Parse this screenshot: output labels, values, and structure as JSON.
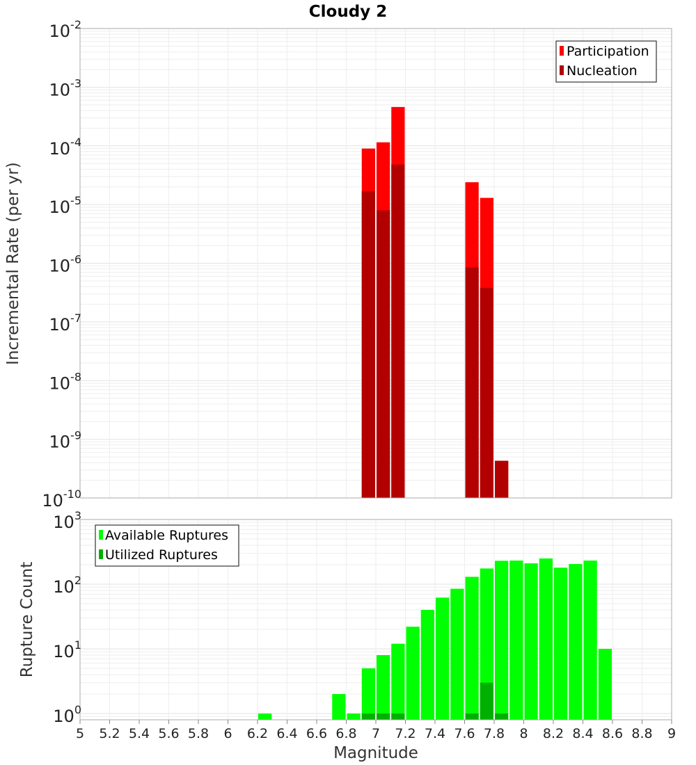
{
  "title": "Cloudy 2",
  "colors": {
    "participation": "#ff0000",
    "nucleation": "#b20000",
    "available": "#00ff00",
    "utilized": "#00b000"
  },
  "chart_data": [
    {
      "type": "bar",
      "title": "Cloudy 2",
      "xlabel": "",
      "ylabel": "Incremental Rate (per yr)",
      "yscale": "log",
      "ylim": [
        1e-10,
        0.01
      ],
      "xlim": [
        5,
        9
      ],
      "ytick_base": "10",
      "ytick_exponents": [
        "-10",
        "-9",
        "-8",
        "-7",
        "-6",
        "-5",
        "-4",
        "-3",
        "-2"
      ],
      "legend": {
        "position": "top-right",
        "entries": [
          "Participation",
          "Nucleation"
        ]
      },
      "grid": true,
      "series": [
        {
          "name": "Participation",
          "points": [
            {
              "x": 6.95,
              "y": 9e-05
            },
            {
              "x": 7.05,
              "y": 0.000115
            },
            {
              "x": 7.15,
              "y": 0.00046
            },
            {
              "x": 7.65,
              "y": 2.4e-05
            },
            {
              "x": 7.75,
              "y": 1.3e-05
            },
            {
              "x": 7.85,
              "y": 4.3e-10
            }
          ]
        },
        {
          "name": "Nucleation",
          "points": [
            {
              "x": 6.95,
              "y": 1.7e-05
            },
            {
              "x": 7.05,
              "y": 8e-06
            },
            {
              "x": 7.15,
              "y": 4.8e-05
            },
            {
              "x": 7.65,
              "y": 8.5e-07
            },
            {
              "x": 7.75,
              "y": 3.8e-07
            },
            {
              "x": 7.85,
              "y": 4.3e-10
            }
          ]
        }
      ]
    },
    {
      "type": "bar",
      "title": "",
      "xlabel": "Magnitude",
      "ylabel": "Rupture Count",
      "yscale": "log",
      "ylim": [
        0.8,
        1000
      ],
      "xlim": [
        5,
        9
      ],
      "ytick_base": "10",
      "ytick_exponents": [
        "0",
        "1",
        "2",
        "3"
      ],
      "x_ticks": [
        "5",
        "5.2",
        "5.4",
        "5.6",
        "5.8",
        "6",
        "6.2",
        "6.4",
        "6.6",
        "6.8",
        "7",
        "7.2",
        "7.4",
        "7.6",
        "7.8",
        "8",
        "8.2",
        "8.4",
        "8.6",
        "8.8",
        "9"
      ],
      "legend": {
        "position": "top-left",
        "entries": [
          "Available Ruptures",
          "Utilized Ruptures"
        ]
      },
      "grid": true,
      "series": [
        {
          "name": "Available Ruptures",
          "points": [
            {
              "x": 6.25,
              "y": 1
            },
            {
              "x": 6.75,
              "y": 2
            },
            {
              "x": 6.85,
              "y": 1
            },
            {
              "x": 6.95,
              "y": 5
            },
            {
              "x": 7.05,
              "y": 8
            },
            {
              "x": 7.15,
              "y": 12
            },
            {
              "x": 7.25,
              "y": 22
            },
            {
              "x": 7.35,
              "y": 40
            },
            {
              "x": 7.45,
              "y": 62
            },
            {
              "x": 7.55,
              "y": 85
            },
            {
              "x": 7.65,
              "y": 130
            },
            {
              "x": 7.75,
              "y": 175
            },
            {
              "x": 7.85,
              "y": 230
            },
            {
              "x": 7.95,
              "y": 232
            },
            {
              "x": 8.05,
              "y": 210
            },
            {
              "x": 8.15,
              "y": 250
            },
            {
              "x": 8.25,
              "y": 180
            },
            {
              "x": 8.35,
              "y": 205
            },
            {
              "x": 8.45,
              "y": 232
            },
            {
              "x": 8.55,
              "y": 10
            }
          ]
        },
        {
          "name": "Utilized Ruptures",
          "points": [
            {
              "x": 6.95,
              "y": 1
            },
            {
              "x": 7.05,
              "y": 1
            },
            {
              "x": 7.15,
              "y": 1
            },
            {
              "x": 7.65,
              "y": 1
            },
            {
              "x": 7.75,
              "y": 3
            },
            {
              "x": 7.85,
              "y": 1
            }
          ]
        }
      ]
    }
  ]
}
